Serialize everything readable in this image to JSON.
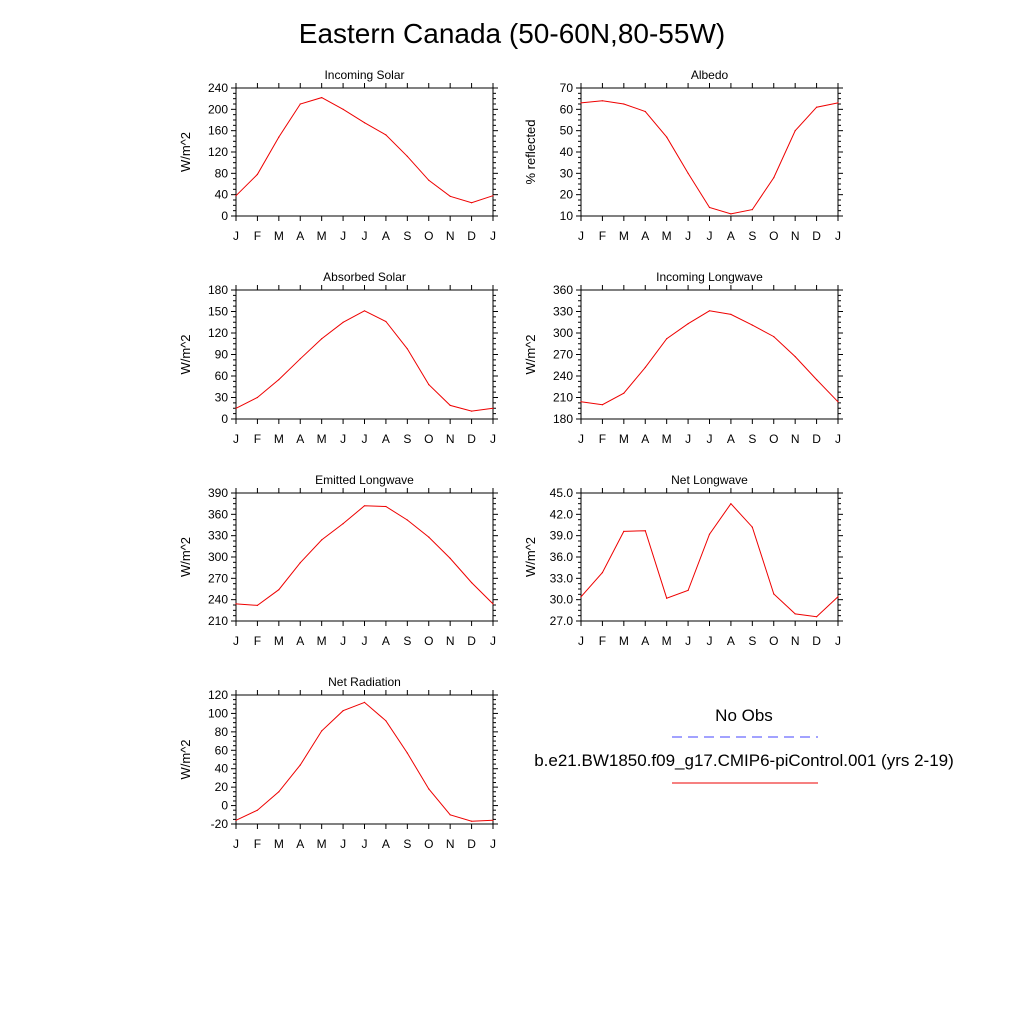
{
  "title": "Eastern Canada (50-60N,80-55W)",
  "legend": {
    "entries": [
      {
        "label": "No Obs",
        "color": "#4444ff",
        "dash": "dashed"
      },
      {
        "label": "b.e21.BW1850.f09_g17.CMIP6-piControl.001 (yrs 2-19)",
        "color": "#ee0000",
        "dash": "solid"
      }
    ]
  },
  "chart_data": [
    {
      "type": "line",
      "title": "Incoming Solar",
      "ylabel": "W/m^2",
      "categories": [
        "J",
        "F",
        "M",
        "A",
        "M",
        "J",
        "J",
        "A",
        "S",
        "O",
        "N",
        "D",
        "J"
      ],
      "ylim": [
        0,
        240
      ],
      "yticks": [
        "0",
        "40",
        "80",
        "120",
        "160",
        "200",
        "240"
      ],
      "series": [
        {
          "values": [
            38,
            78,
            148,
            210,
            222,
            200,
            175,
            152,
            112,
            67,
            37,
            25,
            38
          ]
        }
      ]
    },
    {
      "type": "line",
      "title": "Albedo",
      "ylabel": "% reflected",
      "categories": [
        "J",
        "F",
        "M",
        "A",
        "M",
        "J",
        "J",
        "A",
        "S",
        "O",
        "N",
        "D",
        "J"
      ],
      "ylim": [
        10,
        70
      ],
      "yticks": [
        "10",
        "20",
        "30",
        "40",
        "50",
        "60",
        "70"
      ],
      "series": [
        {
          "values": [
            63,
            64,
            62.5,
            59,
            47,
            30,
            14,
            11,
            13,
            28,
            50,
            61,
            63
          ]
        }
      ]
    },
    {
      "type": "line",
      "title": "Absorbed Solar",
      "ylabel": "W/m^2",
      "categories": [
        "J",
        "F",
        "M",
        "A",
        "M",
        "J",
        "J",
        "A",
        "S",
        "O",
        "N",
        "D",
        "J"
      ],
      "ylim": [
        0,
        180
      ],
      "yticks": [
        "0",
        "30",
        "60",
        "90",
        "120",
        "150",
        "180"
      ],
      "series": [
        {
          "values": [
            15,
            30,
            55,
            84,
            112,
            135,
            151,
            136,
            98,
            48,
            19,
            11,
            15
          ]
        }
      ]
    },
    {
      "type": "line",
      "title": "Incoming Longwave",
      "ylabel": "W/m^2",
      "categories": [
        "J",
        "F",
        "M",
        "A",
        "M",
        "J",
        "J",
        "A",
        "S",
        "O",
        "N",
        "D",
        "J"
      ],
      "ylim": [
        180,
        360
      ],
      "yticks": [
        "180",
        "210",
        "240",
        "270",
        "300",
        "330",
        "360"
      ],
      "series": [
        {
          "values": [
            204,
            200,
            216,
            252,
            292,
            313,
            331,
            326,
            311,
            295,
            267,
            235,
            204
          ]
        }
      ]
    },
    {
      "type": "line",
      "title": "Emitted Longwave",
      "ylabel": "W/m^2",
      "categories": [
        "J",
        "F",
        "M",
        "A",
        "M",
        "J",
        "J",
        "A",
        "S",
        "O",
        "N",
        "D",
        "J"
      ],
      "ylim": [
        210,
        390
      ],
      "yticks": [
        "210",
        "240",
        "270",
        "300",
        "330",
        "360",
        "390"
      ],
      "series": [
        {
          "values": [
            234,
            232,
            254,
            292,
            324,
            347,
            372,
            371,
            352,
            328,
            298,
            264,
            234
          ]
        }
      ]
    },
    {
      "type": "line",
      "title": "Net Longwave",
      "ylabel": "W/m^2",
      "categories": [
        "J",
        "F",
        "M",
        "A",
        "M",
        "J",
        "J",
        "A",
        "S",
        "O",
        "N",
        "D",
        "J"
      ],
      "ylim": [
        27,
        45
      ],
      "yticks": [
        "27.0",
        "30.0",
        "33.0",
        "36.0",
        "39.0",
        "42.0",
        "45.0"
      ],
      "series": [
        {
          "values": [
            30.4,
            33.8,
            39.6,
            39.7,
            30.2,
            31.3,
            39.2,
            43.5,
            40.2,
            30.8,
            28.0,
            27.6,
            30.4
          ]
        }
      ]
    },
    {
      "type": "line",
      "title": "Net Radiation",
      "ylabel": "W/m^2",
      "categories": [
        "J",
        "F",
        "M",
        "A",
        "M",
        "J",
        "J",
        "A",
        "S",
        "O",
        "N",
        "D",
        "J"
      ],
      "ylim": [
        -20,
        120
      ],
      "yticks": [
        "-20",
        "0",
        "20",
        "40",
        "60",
        "80",
        "100",
        "120"
      ],
      "series": [
        {
          "values": [
            -16,
            -5,
            15,
            44,
            81,
            103,
            112,
            92,
            57,
            18,
            -10,
            -17,
            -16
          ]
        }
      ]
    }
  ]
}
